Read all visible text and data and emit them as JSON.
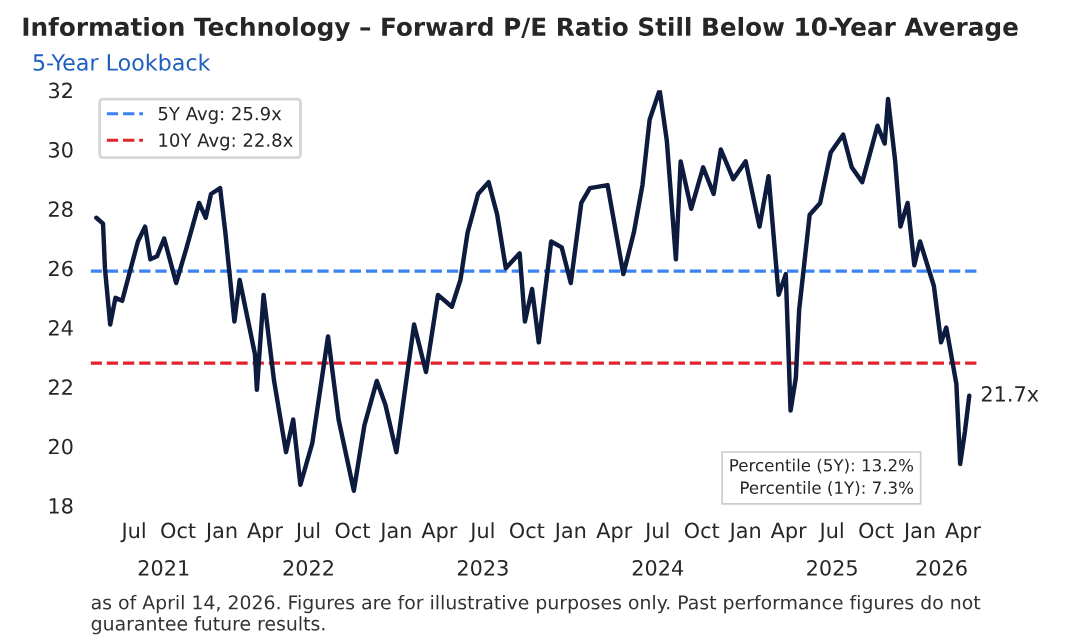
{
  "chart_data": {
    "type": "line",
    "title": "Information Technology – Forward P/E Ratio Still Below 10-Year Average",
    "subtitle": "5-Year Lookback",
    "x": [
      "2021-04-13",
      "2021-04-27",
      "2021-05-01",
      "2021-05-12",
      "2021-05-23",
      "2021-06-06",
      "2021-07-09",
      "2021-07-24",
      "2021-08-04",
      "2021-08-18",
      "2021-09-02",
      "2021-09-27",
      "2021-10-19",
      "2021-11-14",
      "2021-11-28",
      "2021-12-09",
      "2021-12-28",
      "2022-01-08",
      "2022-01-27",
      "2022-02-07",
      "2022-03-11",
      "2022-03-15",
      "2022-03-29",
      "2022-04-20",
      "2022-05-15",
      "2022-05-30",
      "2022-06-14",
      "2022-07-09",
      "2022-08-11",
      "2022-09-02",
      "2022-10-04",
      "2022-10-26",
      "2022-11-21",
      "2022-12-09",
      "2023-01-01",
      "2023-02-07",
      "2023-03-04",
      "2023-03-29",
      "2023-04-27",
      "2023-05-15",
      "2023-05-30",
      "2023-06-21",
      "2023-07-13",
      "2023-07-31",
      "2023-08-18",
      "2023-09-16",
      "2023-09-27",
      "2023-10-12",
      "2023-10-26",
      "2023-11-21",
      "2023-12-13",
      "2024-01-01",
      "2024-01-23",
      "2024-02-10",
      "2024-03-18",
      "2024-04-20",
      "2024-05-12",
      "2024-05-30",
      "2024-06-14",
      "2024-07-05",
      "2024-07-20",
      "2024-08-08",
      "2024-08-18",
      "2024-09-09",
      "2024-10-04",
      "2024-10-26",
      "2024-11-10",
      "2024-12-06",
      "2025-01-01",
      "2025-01-30",
      "2025-02-18",
      "2025-03-11",
      "2025-03-26",
      "2025-04-05",
      "2025-04-16",
      "2025-04-23",
      "2025-05-15",
      "2025-06-06",
      "2025-06-28",
      "2025-07-24",
      "2025-08-11",
      "2025-09-02",
      "2025-10-04",
      "2025-10-19",
      "2025-10-26",
      "2025-11-10",
      "2025-11-21",
      "2025-12-06",
      "2025-12-20",
      "2026-01-01",
      "2026-01-30",
      "2026-02-14",
      "2026-02-25",
      "2026-03-18",
      "2026-03-26",
      "2026-04-05",
      "2026-04-14"
    ],
    "series": [
      {
        "color": "#0d1b3e",
        "values": [
          27.7,
          27.5,
          26.0,
          24.1,
          25.0,
          24.9,
          26.9,
          27.4,
          26.3,
          26.4,
          27.0,
          25.5,
          26.7,
          28.2,
          27.7,
          28.5,
          28.7,
          27.2,
          24.2,
          25.6,
          23.1,
          21.9,
          25.1,
          22.2,
          19.8,
          20.9,
          18.7,
          20.1,
          23.7,
          20.9,
          18.5,
          20.7,
          22.2,
          21.4,
          19.8,
          24.1,
          22.5,
          25.1,
          24.7,
          25.6,
          27.2,
          28.5,
          28.9,
          27.8,
          26.0,
          26.5,
          24.2,
          25.3,
          23.5,
          26.9,
          26.7,
          25.5,
          28.2,
          28.7,
          28.8,
          25.8,
          27.2,
          28.8,
          31.0,
          32.0,
          30.3,
          26.3,
          29.6,
          28.0,
          29.4,
          28.5,
          30.0,
          29.0,
          29.6,
          27.4,
          29.1,
          25.1,
          25.8,
          21.2,
          22.3,
          24.6,
          27.8,
          28.2,
          29.9,
          30.5,
          29.4,
          28.9,
          30.8,
          30.2,
          31.7,
          29.6,
          27.4,
          28.2,
          26.1,
          26.9,
          25.4,
          23.5,
          24.0,
          22.1,
          19.4,
          20.5,
          21.7
        ]
      }
    ],
    "xlim": [
      "2021-04-01",
      "2026-05-08"
    ],
    "xticks": [
      {
        "value": "2021-07-01",
        "label": "Jul"
      },
      {
        "value": "2021-10-01",
        "label": "Oct"
      },
      {
        "value": "2022-01-01",
        "label": "Jan"
      },
      {
        "value": "2022-04-01",
        "label": "Apr"
      },
      {
        "value": "2022-07-01",
        "label": "Jul"
      },
      {
        "value": "2022-10-01",
        "label": "Oct"
      },
      {
        "value": "2023-01-01",
        "label": "Jan"
      },
      {
        "value": "2023-04-01",
        "label": "Apr"
      },
      {
        "value": "2023-07-01",
        "label": "Jul"
      },
      {
        "value": "2023-10-01",
        "label": "Oct"
      },
      {
        "value": "2024-01-01",
        "label": "Jan"
      },
      {
        "value": "2024-04-01",
        "label": "Apr"
      },
      {
        "value": "2024-07-01",
        "label": "Jul"
      },
      {
        "value": "2024-10-01",
        "label": "Oct"
      },
      {
        "value": "2025-01-01",
        "label": "Jan"
      },
      {
        "value": "2025-04-01",
        "label": "Apr"
      },
      {
        "value": "2025-07-01",
        "label": "Jul"
      },
      {
        "value": "2025-10-01",
        "label": "Oct"
      },
      {
        "value": "2026-01-01",
        "label": "Jan"
      },
      {
        "value": "2026-04-01",
        "label": "Apr"
      }
    ],
    "x2lim": [
      "2021-04-01",
      "2026-05-08"
    ],
    "x2ticks": [
      {
        "value": "2021-09-01",
        "label": "2021"
      },
      {
        "value": "2022-07-01",
        "label": "2022"
      },
      {
        "value": "2023-07-01",
        "label": "2023"
      },
      {
        "value": "2024-07-01",
        "label": "2024"
      },
      {
        "value": "2025-07-01",
        "label": "2025"
      },
      {
        "value": "2026-02-15",
        "label": "2026"
      }
    ],
    "ylim": [
      18,
      32
    ],
    "yticks": [
      18,
      20,
      22,
      24,
      26,
      28,
      30,
      32
    ],
    "ref_lines": [
      {
        "axis": "y",
        "value": 25.9,
        "label": "5Y Avg: 25.9x",
        "color": "#3b82f6",
        "line_style": "dashed"
      },
      {
        "axis": "y",
        "value": 22.8,
        "label": "10Y Avg: 22.8x",
        "color": "#e0242b",
        "line_style": "dashed"
      }
    ],
    "annotations": [
      {
        "text": "21.7x",
        "x": "2026-04-14",
        "y": 21.7
      },
      "Percentile (5Y): 13.2%\nPercentile (1Y): 7.3%",
      "as of April 14, 2026. Figures are for illustrative purposes only. Past performance figures do not guarantee future results."
    ],
    "legend": "top left",
    "grid": false,
    "line_style": "solid",
    "marker": "none"
  }
}
